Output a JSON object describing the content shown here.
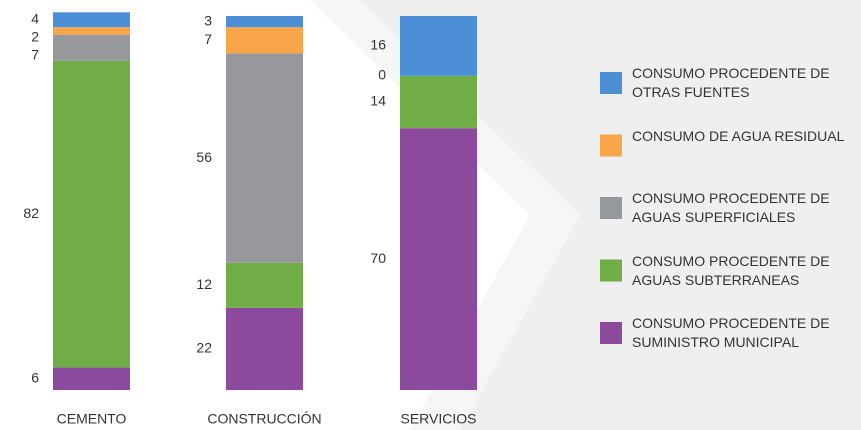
{
  "chart_data": {
    "type": "stacked_bar",
    "categories": [
      "CEMENTO",
      "CONSTRUCCIÓN",
      "SERVICIOS"
    ],
    "ylim": [
      0,
      100
    ],
    "series": [
      {
        "name": "CONSUMO PROCEDENTE DE OTRAS FUENTES",
        "color": "#4d8fd6",
        "values": [
          4,
          3,
          16
        ]
      },
      {
        "name": "CONSUMO DE AGUA RESIDUAL",
        "color": "#f9a54a",
        "values": [
          2,
          7,
          0
        ]
      },
      {
        "name": "CONSUMO PROCEDENTE DE AGUAS SUPERFICIALES",
        "color": "#97989b",
        "values": [
          7,
          56,
          null
        ]
      },
      {
        "name": "CONSUMO PROCEDENTE DE AGUAS SUBTERRANEAS",
        "color": "#70ad47",
        "values": [
          82,
          12,
          14
        ]
      },
      {
        "name": "CONSUMO PROCEDENTE DE SUMINISTRO MUNICIPAL",
        "color": "#8b4a9c",
        "values": [
          6,
          22,
          70
        ]
      }
    ]
  }
}
